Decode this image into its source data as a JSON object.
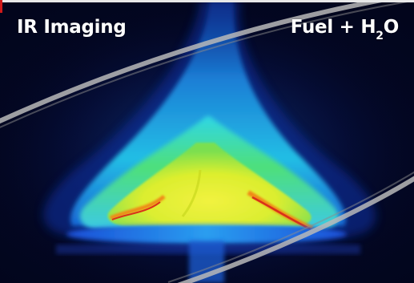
{
  "labels": {
    "left": "IR Imaging",
    "right": {
      "main": "Fuel + H",
      "subscript": "2",
      "suffix": "O"
    }
  },
  "colors": {
    "background": "#02051c",
    "flame_outer": "#1b7fe0",
    "flame_cyan": "#27d3e8",
    "flame_green": "#44e05a",
    "flame_yellow": "#f2ec1a",
    "flame_orange": "#f08a18",
    "flame_red": "#d9301a",
    "band": "#b8b8b8",
    "text": "#ffffff"
  }
}
